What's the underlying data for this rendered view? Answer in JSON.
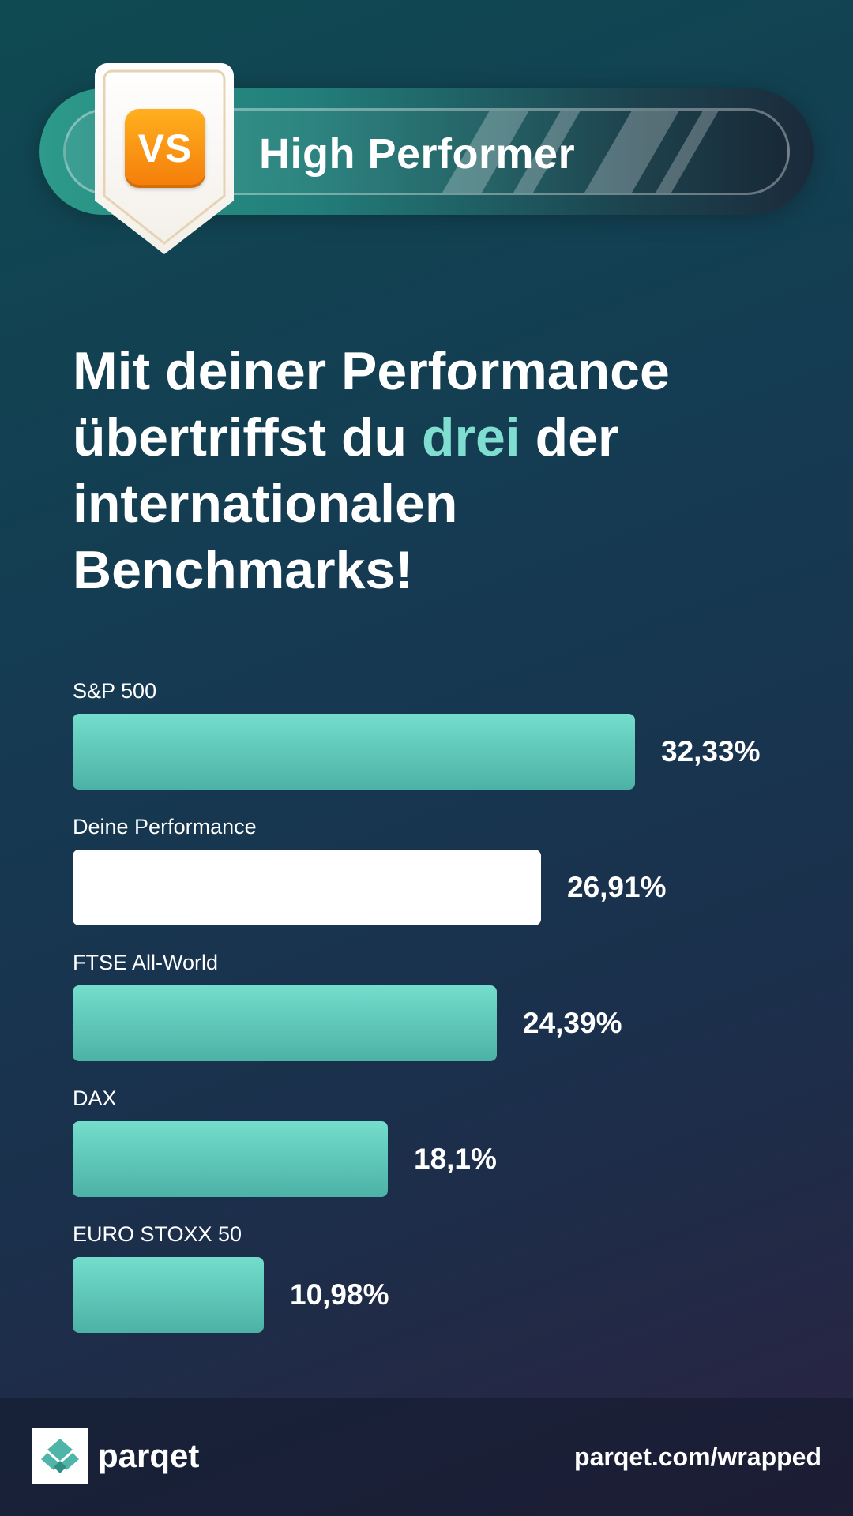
{
  "badge": {
    "icon_text": "VS",
    "title": "High Performer",
    "colors": {
      "icon_top": "#ffb01f",
      "icon_bottom": "#f47d0a",
      "shield_border": "#e6d3b3"
    }
  },
  "headline": {
    "line1": "Mit deiner Performance",
    "line2_before": "übertriffst du ",
    "line2_highlight": "drei",
    "line2_after": " der",
    "line3": "internationalen",
    "line4": "Benchmarks!",
    "highlight_color": "#7fded0"
  },
  "chart_data": {
    "type": "bar",
    "orientation": "horizontal",
    "categories": [
      "S&P 500",
      "Deine Performance",
      "FTSE All-World",
      "DAX",
      "EURO STOXX 50"
    ],
    "values": [
      32.33,
      26.91,
      24.39,
      18.1,
      10.98
    ],
    "value_labels": [
      "32,33%",
      "26,91%",
      "24,39%",
      "18,1%",
      "10,98%"
    ],
    "highlight_category": "Deine Performance",
    "colors": {
      "bar": "#5cc8b8",
      "highlight_bar": "#ffffff"
    }
  },
  "footer": {
    "brand": "parqet",
    "url": "parqet.com/wrapped",
    "logo_icon": "parqet-logo-icon"
  }
}
